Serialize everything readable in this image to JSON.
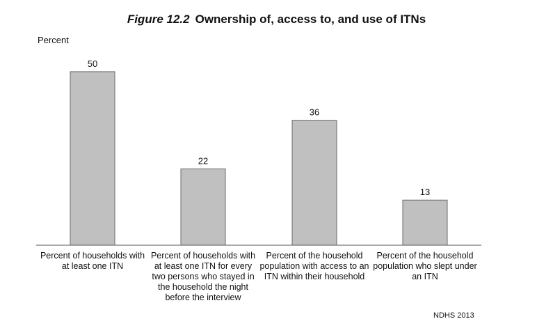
{
  "figure": {
    "number": "Figure 12.2",
    "title": "Ownership of, access to, and use of ITNs",
    "source": "NDHS 2013"
  },
  "chart_data": {
    "type": "bar",
    "title": "Ownership of, access to, and use of ITNs",
    "ylabel": "Percent",
    "xlabel": "",
    "ylim": [
      0,
      55
    ],
    "grid": false,
    "categories": [
      "Percent of households with at least one ITN",
      "Percent of households with at least one ITN for every two persons who stayed in the household the night before the interview",
      "Percent of the household population with access to an ITN within their household",
      "Percent of the household population who slept under an ITN"
    ],
    "values": [
      50,
      22,
      36,
      13
    ],
    "data_labels": [
      "50",
      "22",
      "36",
      "13"
    ],
    "colors": {
      "bar": "#c0c0c0",
      "bar_stroke": "#6a6a6a",
      "axis": "#555555"
    }
  }
}
